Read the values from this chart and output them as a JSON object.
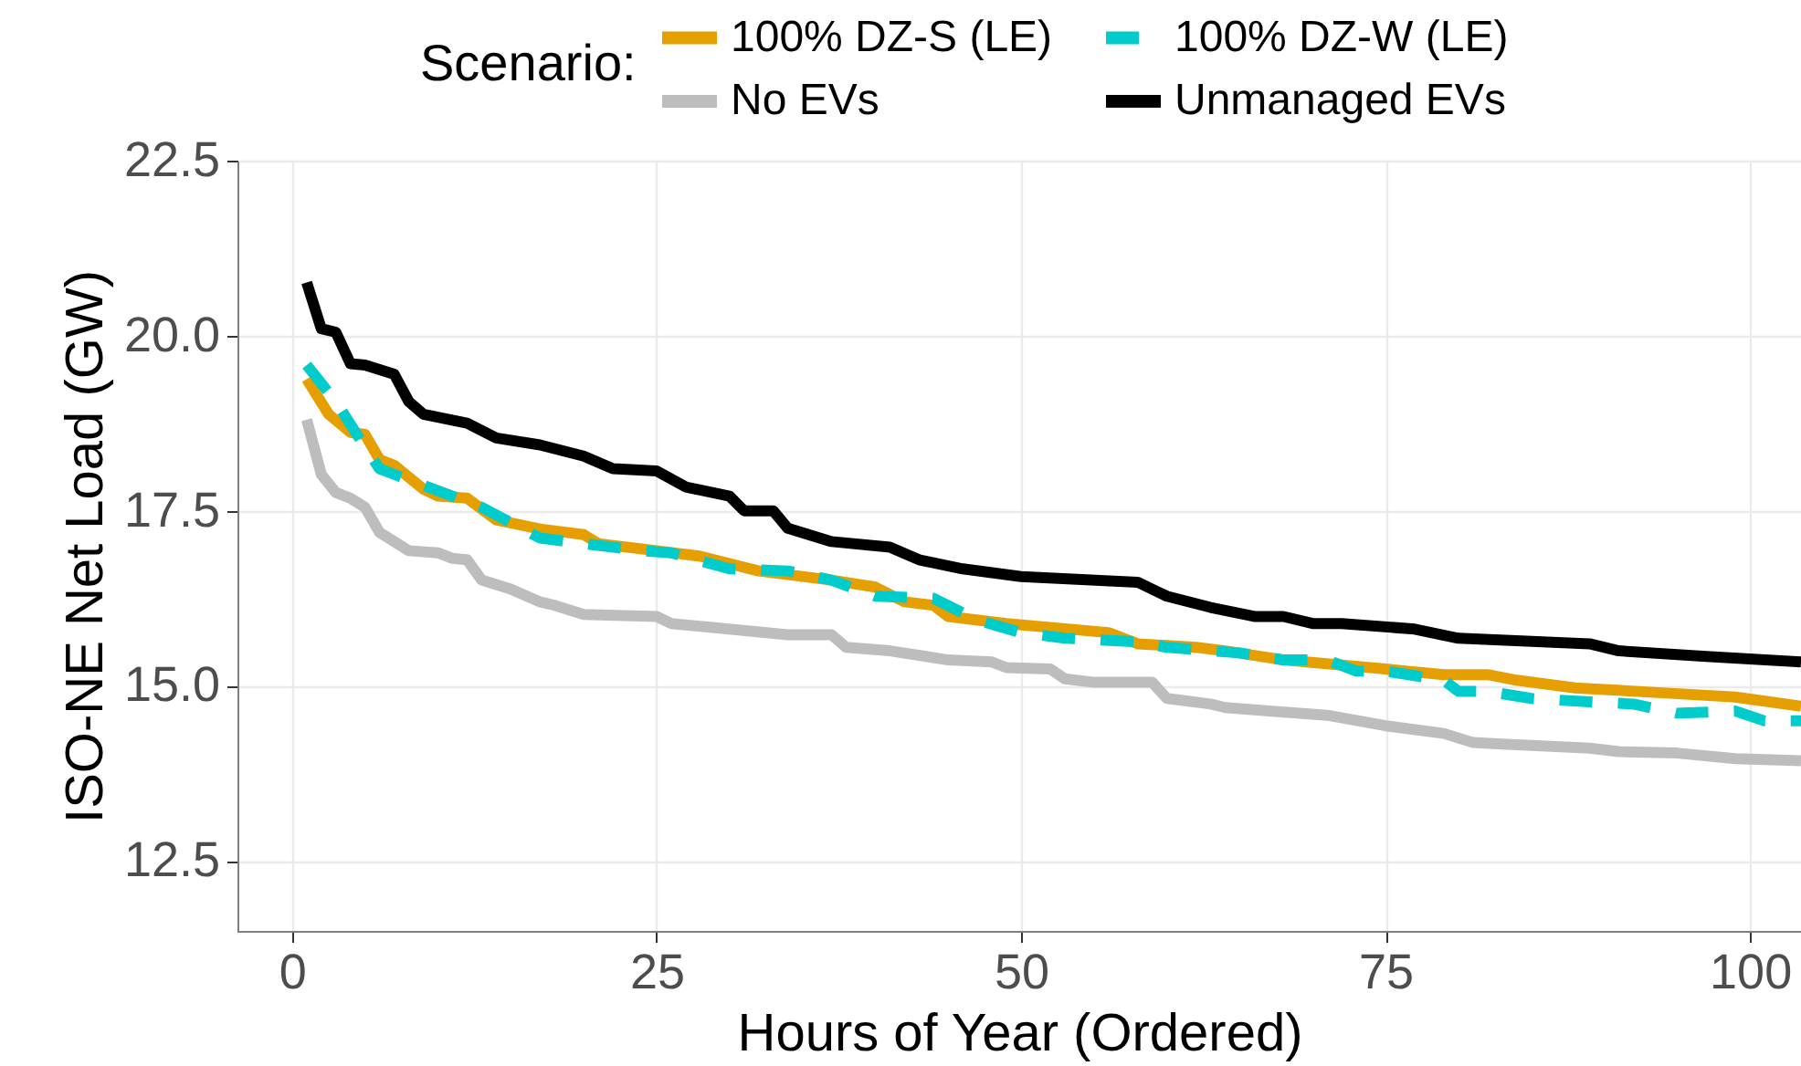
{
  "chart_data": {
    "type": "line",
    "xlabel": "Hours of Year (Ordered)",
    "ylabel": "ISO-NE Net Load (GW)",
    "legend_title": "Scenario:",
    "legend": "top",
    "grid": true,
    "xlim": [
      -3.75,
      103.5
    ],
    "ylim": [
      11.5,
      22.5
    ],
    "xticks": [
      0,
      25,
      50,
      75,
      100
    ],
    "yticks": [
      12.5,
      {
        "value": 15,
        "label": "15.0"
      },
      17.5,
      {
        "value": 20,
        "label": "20.0"
      },
      22.5
    ],
    "series": [
      {
        "name": "100% DZ-S (LE)",
        "color": "#e69f00",
        "line_style": "solid",
        "x": [
          1,
          2.5,
          4,
          5,
          6,
          7,
          9,
          10,
          12,
          14,
          17,
          20,
          21,
          25,
          28,
          32,
          37,
          40,
          42,
          44,
          45,
          49,
          56,
          58,
          62,
          64,
          68,
          75,
          79,
          82,
          84,
          88,
          94,
          99,
          103.5
        ],
        "values": [
          19.38,
          18.88,
          18.62,
          18.59,
          18.23,
          18.15,
          17.81,
          17.71,
          17.68,
          17.37,
          17.24,
          17.16,
          17.03,
          16.93,
          16.85,
          16.64,
          16.51,
          16.41,
          16.2,
          16.15,
          15.99,
          15.89,
          15.76,
          15.6,
          15.55,
          15.5,
          15.37,
          15.24,
          15.16,
          15.16,
          15.08,
          14.97,
          14.9,
          14.84,
          14.71
        ]
      },
      {
        "name": "100% DZ-W (LE)",
        "color": "#00cccc",
        "line_style": "dashed",
        "x": [
          1,
          2.5,
          3,
          5,
          6,
          7,
          11,
          13,
          17,
          20,
          24,
          26,
          30,
          34,
          37,
          40,
          44,
          47,
          50,
          53,
          58,
          60,
          65,
          68,
          71,
          73,
          75,
          79,
          80,
          82,
          85,
          89,
          92,
          95,
          99,
          101,
          103.5
        ],
        "values": [
          19.58,
          19.19,
          19.06,
          18.41,
          18.1,
          18.02,
          17.71,
          17.55,
          17.11,
          17.03,
          16.93,
          16.9,
          16.67,
          16.64,
          16.51,
          16.28,
          16.25,
          15.94,
          15.76,
          15.68,
          15.63,
          15.55,
          15.47,
          15.37,
          15.37,
          15.21,
          15.21,
          15.08,
          14.92,
          14.92,
          14.82,
          14.77,
          14.74,
          14.61,
          14.64,
          14.5,
          14.5
        ]
      },
      {
        "name": "No EVs",
        "color": "#bdbdbd",
        "line_style": "solid",
        "x": [
          1,
          2,
          3,
          4,
          5,
          6,
          7,
          8,
          10,
          11,
          12,
          13,
          15,
          17,
          18,
          20,
          25,
          26,
          29,
          34,
          37,
          38,
          41,
          45,
          48,
          49,
          52,
          53,
          55,
          59,
          60,
          63,
          64,
          67,
          71,
          75,
          79,
          81,
          83,
          89,
          91,
          95,
          99,
          103.5
        ],
        "values": [
          18.8,
          18.02,
          17.76,
          17.68,
          17.55,
          17.19,
          17.06,
          16.93,
          16.9,
          16.82,
          16.8,
          16.51,
          16.38,
          16.2,
          16.15,
          16.02,
          15.99,
          15.89,
          15.83,
          15.73,
          15.73,
          15.55,
          15.5,
          15.37,
          15.34,
          15.26,
          15.24,
          15.1,
          15.05,
          15.05,
          14.82,
          14.74,
          14.69,
          14.64,
          14.58,
          14.43,
          14.32,
          14.19,
          14.17,
          14.11,
          14.06,
          14.04,
          13.96,
          13.93
        ]
      },
      {
        "name": "Unmanaged EVs",
        "color": "#000000",
        "line_style": "solid",
        "x": [
          1,
          2,
          3,
          4,
          5,
          7,
          8,
          9,
          12,
          14,
          17,
          20,
          22,
          25,
          27,
          30,
          31,
          33,
          34,
          37,
          41,
          43,
          46,
          50,
          58,
          60,
          63,
          66,
          68,
          70,
          72,
          77,
          80,
          89,
          91,
          97,
          103.5
        ],
        "values": [
          20.76,
          20.1,
          20.05,
          19.6,
          19.58,
          19.45,
          19.06,
          18.88,
          18.75,
          18.54,
          18.44,
          18.28,
          18.1,
          18.07,
          17.84,
          17.71,
          17.5,
          17.5,
          17.25,
          17.06,
          16.98,
          16.8,
          16.67,
          16.56,
          16.48,
          16.28,
          16.12,
          15.99,
          15.99,
          15.89,
          15.89,
          15.81,
          15.68,
          15.6,
          15.5,
          15.42,
          15.34
        ]
      }
    ]
  }
}
